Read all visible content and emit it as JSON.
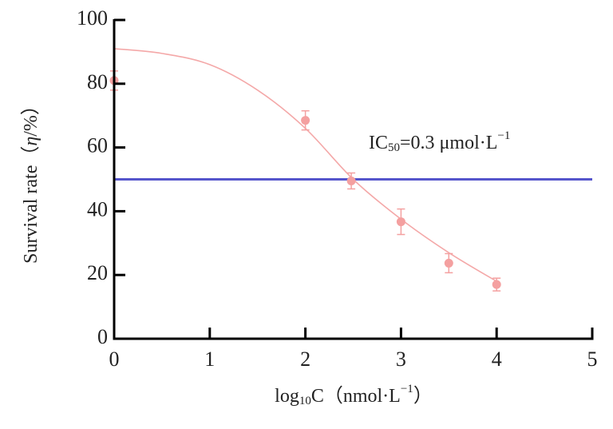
{
  "chart_data": {
    "type": "dose-response",
    "xlabel_parts": [
      "log",
      "10",
      "C（nmol·L",
      "−1",
      "）"
    ],
    "ylabel_parts": [
      "Survival rate（",
      "η",
      "/%）"
    ],
    "annotation_parts": [
      "IC",
      "50",
      "=0.3 μmol·L",
      "−1"
    ],
    "points": {
      "x": [
        0,
        2,
        2.48,
        3,
        3.5,
        4
      ],
      "values": [
        81,
        68.5,
        49.5,
        36.7,
        23.7,
        17
      ],
      "errors": [
        3,
        3,
        2.5,
        4,
        3,
        2
      ],
      "color": "#f4a0a0"
    },
    "fit": {
      "x": [
        0,
        0.5,
        1,
        1.5,
        2,
        2.5,
        3,
        3.5,
        4
      ],
      "values": [
        91,
        89.5,
        86,
        78,
        66,
        50,
        37.5,
        27,
        18
      ],
      "color": "#f4a8a8"
    },
    "reference": {
      "value": 50,
      "color": "#5555cc"
    },
    "xlim": [
      0,
      5
    ],
    "xticks": [
      0,
      1,
      2,
      3,
      4,
      5
    ],
    "ylim": [
      0,
      100
    ],
    "yticks": [
      0,
      20,
      40,
      60,
      80,
      100
    ]
  }
}
